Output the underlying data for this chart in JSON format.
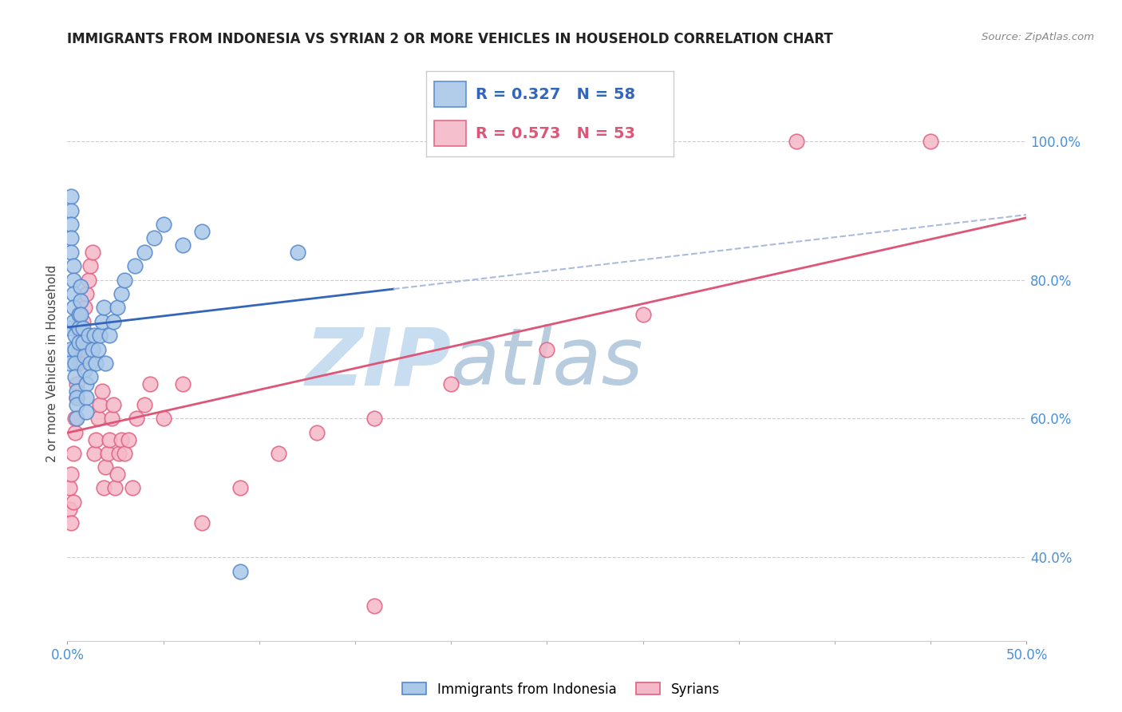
{
  "title": "IMMIGRANTS FROM INDONESIA VS SYRIAN 2 OR MORE VEHICLES IN HOUSEHOLD CORRELATION CHART",
  "source": "Source: ZipAtlas.com",
  "ylabel": "2 or more Vehicles in Household",
  "xmin": 0.0,
  "xmax": 0.5,
  "ymin": 0.28,
  "ymax": 1.08,
  "ytick_labels": [
    "40.0%",
    "60.0%",
    "80.0%",
    "100.0%"
  ],
  "ytick_values": [
    0.4,
    0.6,
    0.8,
    1.0
  ],
  "xtick_right_label": "50.0%",
  "xtick_left_label": "0.0%",
  "indonesia_color": "#aac8e8",
  "indonesia_edge_color": "#5588cc",
  "syria_color": "#f5b8c8",
  "syria_edge_color": "#e06080",
  "indonesia_line_color": "#3366bb",
  "indonesia_line_dash_color": "#aabbdd",
  "syria_line_color": "#dd5577",
  "indonesia_R": 0.327,
  "indonesia_N": 58,
  "syria_R": 0.573,
  "syria_N": 53,
  "watermark_zip": "ZIP",
  "watermark_atlas": "atlas",
  "watermark_color_zip": "#c8ddf0",
  "watermark_color_atlas": "#b8cce0",
  "legend_label_indonesia": "Immigrants from Indonesia",
  "legend_label_syria": "Syrians",
  "indonesia_x": [
    0.001,
    0.001,
    0.001,
    0.002,
    0.002,
    0.002,
    0.002,
    0.002,
    0.003,
    0.003,
    0.003,
    0.003,
    0.003,
    0.004,
    0.004,
    0.004,
    0.004,
    0.005,
    0.005,
    0.005,
    0.005,
    0.006,
    0.006,
    0.006,
    0.007,
    0.007,
    0.007,
    0.008,
    0.008,
    0.009,
    0.009,
    0.01,
    0.01,
    0.01,
    0.011,
    0.012,
    0.012,
    0.013,
    0.014,
    0.015,
    0.016,
    0.017,
    0.018,
    0.019,
    0.02,
    0.022,
    0.024,
    0.026,
    0.028,
    0.03,
    0.035,
    0.04,
    0.045,
    0.05,
    0.06,
    0.07,
    0.09,
    0.12
  ],
  "indonesia_y": [
    0.73,
    0.7,
    0.68,
    0.92,
    0.9,
    0.88,
    0.86,
    0.84,
    0.82,
    0.8,
    0.78,
    0.76,
    0.74,
    0.72,
    0.7,
    0.68,
    0.66,
    0.64,
    0.63,
    0.62,
    0.6,
    0.75,
    0.73,
    0.71,
    0.79,
    0.77,
    0.75,
    0.73,
    0.71,
    0.69,
    0.67,
    0.65,
    0.63,
    0.61,
    0.72,
    0.68,
    0.66,
    0.7,
    0.72,
    0.68,
    0.7,
    0.72,
    0.74,
    0.76,
    0.68,
    0.72,
    0.74,
    0.76,
    0.78,
    0.8,
    0.82,
    0.84,
    0.86,
    0.88,
    0.85,
    0.87,
    0.38,
    0.84
  ],
  "syria_x": [
    0.001,
    0.001,
    0.002,
    0.002,
    0.003,
    0.003,
    0.004,
    0.004,
    0.005,
    0.005,
    0.006,
    0.006,
    0.007,
    0.008,
    0.009,
    0.01,
    0.011,
    0.012,
    0.013,
    0.014,
    0.015,
    0.016,
    0.017,
    0.018,
    0.019,
    0.02,
    0.021,
    0.022,
    0.023,
    0.024,
    0.025,
    0.026,
    0.027,
    0.028,
    0.03,
    0.032,
    0.034,
    0.036,
    0.04,
    0.043,
    0.05,
    0.06,
    0.07,
    0.09,
    0.11,
    0.13,
    0.16,
    0.2,
    0.25,
    0.3,
    0.38,
    0.45,
    0.16
  ],
  "syria_y": [
    0.47,
    0.5,
    0.45,
    0.52,
    0.48,
    0.55,
    0.58,
    0.6,
    0.63,
    0.65,
    0.68,
    0.7,
    0.72,
    0.74,
    0.76,
    0.78,
    0.8,
    0.82,
    0.84,
    0.55,
    0.57,
    0.6,
    0.62,
    0.64,
    0.5,
    0.53,
    0.55,
    0.57,
    0.6,
    0.62,
    0.5,
    0.52,
    0.55,
    0.57,
    0.55,
    0.57,
    0.5,
    0.6,
    0.62,
    0.65,
    0.6,
    0.65,
    0.45,
    0.5,
    0.55,
    0.58,
    0.6,
    0.65,
    0.7,
    0.75,
    1.0,
    1.0,
    0.33
  ]
}
